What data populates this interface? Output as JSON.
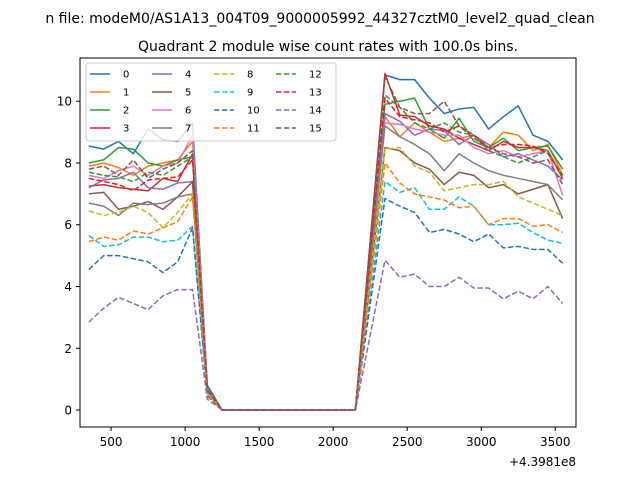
{
  "chart_data": {
    "type": "line",
    "suptitle": "n file: modeM0/AS1A13_004T09_9000005992_44327cztM0_level2_quad_clean",
    "title": "Quadrant 2 module wise count rates with 100.0s bins.",
    "xlabel": "",
    "ylabel": "",
    "offset_text": "+4.3981e8",
    "xlim": [
      290,
      3640
    ],
    "ylim": [
      -0.55,
      11.4
    ],
    "xticks": [
      500,
      1000,
      1500,
      2000,
      2500,
      3000,
      3500
    ],
    "yticks": [
      0,
      2,
      4,
      6,
      8,
      10
    ],
    "legend_position": "upper-left",
    "x": [
      350,
      450,
      550,
      650,
      750,
      850,
      950,
      1050,
      1150,
      1250,
      1350,
      1450,
      1550,
      1650,
      1750,
      1850,
      1950,
      2050,
      2150,
      2350,
      2450,
      2550,
      2650,
      2750,
      2850,
      2950,
      3050,
      3150,
      3250,
      3350,
      3450,
      3550
    ],
    "series": [
      {
        "name": "0",
        "color": "#1f77b4",
        "dash": "solid",
        "values": [
          8.55,
          8.45,
          8.7,
          8.3,
          9.1,
          8.75,
          8.7,
          9.3,
          0.8,
          0.0,
          0.0,
          0.0,
          0.0,
          0.0,
          0.0,
          0.0,
          0.0,
          0.0,
          0.0,
          10.85,
          10.7,
          10.7,
          10.1,
          9.6,
          9.75,
          9.8,
          9.1,
          9.5,
          9.85,
          8.9,
          8.7,
          8.1
        ]
      },
      {
        "name": "1",
        "color": "#ff7f0e",
        "dash": "solid",
        "values": [
          7.9,
          8.0,
          7.85,
          7.6,
          7.9,
          8.0,
          8.1,
          8.7,
          0.7,
          0.0,
          0.0,
          0.0,
          0.0,
          0.0,
          0.0,
          0.0,
          0.0,
          0.0,
          0.0,
          9.5,
          8.85,
          9.3,
          9.0,
          8.7,
          8.8,
          8.9,
          8.5,
          9.0,
          8.9,
          8.4,
          8.6,
          7.6
        ]
      },
      {
        "name": "2",
        "color": "#2ca02c",
        "dash": "solid",
        "values": [
          8.0,
          8.1,
          8.5,
          8.45,
          8.0,
          7.9,
          8.1,
          8.2,
          0.75,
          0.0,
          0.0,
          0.0,
          0.0,
          0.0,
          0.0,
          0.0,
          0.0,
          0.0,
          0.0,
          9.9,
          10.0,
          10.1,
          9.1,
          8.8,
          9.45,
          8.7,
          8.5,
          8.8,
          8.4,
          8.5,
          8.55,
          7.8
        ]
      },
      {
        "name": "3",
        "color": "#d62728",
        "dash": "solid",
        "values": [
          7.25,
          7.3,
          7.2,
          7.15,
          7.1,
          7.5,
          7.4,
          8.3,
          0.7,
          0.0,
          0.0,
          0.0,
          0.0,
          0.0,
          0.0,
          0.0,
          0.0,
          0.0,
          0.0,
          10.9,
          9.55,
          9.5,
          9.2,
          9.1,
          8.8,
          8.6,
          8.4,
          8.7,
          8.5,
          8.5,
          8.4,
          7.5
        ]
      },
      {
        "name": "4",
        "color": "#9467bd",
        "dash": "solid",
        "values": [
          7.2,
          7.45,
          7.5,
          7.7,
          7.2,
          7.15,
          7.35,
          7.4,
          0.65,
          0.0,
          0.0,
          0.0,
          0.0,
          0.0,
          0.0,
          0.0,
          0.0,
          0.0,
          0.0,
          9.6,
          9.35,
          8.9,
          9.1,
          9.05,
          8.6,
          8.9,
          8.6,
          8.2,
          8.3,
          8.1,
          7.9,
          7.45
        ]
      },
      {
        "name": "5",
        "color": "#8c564b",
        "dash": "solid",
        "values": [
          7.0,
          7.05,
          6.5,
          6.6,
          6.75,
          6.5,
          6.9,
          7.4,
          0.6,
          0.0,
          0.0,
          0.0,
          0.0,
          0.0,
          0.0,
          0.0,
          0.0,
          0.0,
          0.0,
          8.5,
          8.4,
          8.0,
          7.8,
          7.3,
          7.7,
          7.6,
          7.2,
          7.3,
          7.0,
          7.15,
          7.3,
          6.2
        ]
      },
      {
        "name": "6",
        "color": "#e377c2",
        "dash": "solid",
        "values": [
          7.6,
          7.5,
          7.75,
          7.9,
          7.6,
          7.9,
          8.0,
          8.9,
          0.7,
          0.0,
          0.0,
          0.0,
          0.0,
          0.0,
          0.0,
          0.0,
          0.0,
          0.0,
          0.0,
          9.3,
          9.25,
          9.1,
          9.0,
          8.9,
          8.9,
          8.5,
          8.3,
          8.4,
          8.2,
          8.3,
          8.4,
          6.95
        ]
      },
      {
        "name": "7",
        "color": "#7f7f7f",
        "dash": "solid",
        "values": [
          6.7,
          6.6,
          6.3,
          6.7,
          6.65,
          6.7,
          6.9,
          7.0,
          0.6,
          0.0,
          0.0,
          0.0,
          0.0,
          0.0,
          0.0,
          0.0,
          0.0,
          0.0,
          0.0,
          9.2,
          8.85,
          8.6,
          8.3,
          7.75,
          8.3,
          8.0,
          7.75,
          7.6,
          7.5,
          7.4,
          7.3,
          6.8
        ]
      },
      {
        "name": "8",
        "color": "#bcbd22",
        "dash": "dashed",
        "values": [
          6.45,
          6.3,
          6.4,
          6.6,
          6.4,
          5.9,
          6.4,
          7.0,
          0.55,
          0.0,
          0.0,
          0.0,
          0.0,
          0.0,
          0.0,
          0.0,
          0.0,
          0.0,
          0.0,
          8.45,
          8.5,
          7.9,
          7.7,
          7.1,
          7.2,
          7.3,
          7.3,
          7.4,
          6.9,
          6.7,
          6.5,
          6.3
        ]
      },
      {
        "name": "9",
        "color": "#17becf",
        "dash": "dashed",
        "values": [
          5.65,
          5.3,
          5.35,
          5.6,
          5.6,
          5.45,
          5.5,
          5.95,
          0.5,
          0.0,
          0.0,
          0.0,
          0.0,
          0.0,
          0.0,
          0.0,
          0.0,
          0.0,
          0.0,
          7.4,
          7.05,
          7.2,
          6.5,
          6.5,
          6.9,
          6.6,
          6.0,
          6.0,
          6.05,
          5.75,
          5.5,
          5.4
        ]
      },
      {
        "name": "10",
        "color": "#1f77b4",
        "dash": "dashed",
        "values": [
          4.55,
          5.0,
          5.0,
          4.9,
          4.8,
          4.45,
          4.8,
          5.9,
          0.45,
          0.0,
          0.0,
          0.0,
          0.0,
          0.0,
          0.0,
          0.0,
          0.0,
          0.0,
          0.0,
          6.85,
          6.6,
          6.4,
          5.75,
          5.85,
          5.7,
          5.45,
          5.7,
          5.25,
          5.3,
          5.2,
          5.2,
          4.75
        ]
      },
      {
        "name": "11",
        "color": "#ff7f0e",
        "dash": "dashed",
        "values": [
          5.45,
          5.6,
          5.5,
          5.8,
          5.7,
          5.9,
          6.1,
          6.9,
          0.5,
          0.0,
          0.0,
          0.0,
          0.0,
          0.0,
          0.0,
          0.0,
          0.0,
          0.0,
          0.0,
          8.0,
          7.35,
          7.0,
          6.9,
          6.8,
          6.55,
          6.6,
          6.0,
          6.2,
          6.2,
          5.95,
          6.0,
          5.75
        ]
      },
      {
        "name": "12",
        "color": "#2ca02c",
        "dash": "dashed",
        "values": [
          7.7,
          7.6,
          7.55,
          7.4,
          7.7,
          7.6,
          7.9,
          8.2,
          0.7,
          0.0,
          0.0,
          0.0,
          0.0,
          0.0,
          0.0,
          0.0,
          0.0,
          0.0,
          0.0,
          10.2,
          9.8,
          9.3,
          9.1,
          9.3,
          9.0,
          8.9,
          8.4,
          8.2,
          8.0,
          8.2,
          8.4,
          7.5
        ]
      },
      {
        "name": "13",
        "color": "#d62728",
        "dash": "dashed",
        "values": [
          7.5,
          7.4,
          7.3,
          7.1,
          7.45,
          7.5,
          7.55,
          8.1,
          0.65,
          0.0,
          0.0,
          0.0,
          0.0,
          0.0,
          0.0,
          0.0,
          0.0,
          0.0,
          0.0,
          10.1,
          9.5,
          9.4,
          9.3,
          9.0,
          9.2,
          8.9,
          8.5,
          8.6,
          8.6,
          8.55,
          8.3,
          7.6
        ]
      },
      {
        "name": "14",
        "color": "#9467bd",
        "dash": "dashed",
        "values": [
          2.85,
          3.3,
          3.65,
          3.45,
          3.25,
          3.7,
          3.9,
          3.9,
          0.35,
          0.0,
          0.0,
          0.0,
          0.0,
          0.0,
          0.0,
          0.0,
          0.0,
          0.0,
          0.0,
          4.85,
          4.3,
          4.4,
          4.0,
          4.0,
          4.3,
          3.95,
          3.95,
          3.6,
          3.85,
          3.6,
          4.0,
          3.45
        ]
      },
      {
        "name": "15",
        "color": "#8c564b",
        "dash": "dashed",
        "values": [
          7.8,
          7.9,
          7.6,
          8.1,
          7.5,
          7.8,
          8.0,
          8.4,
          0.7,
          0.0,
          0.0,
          0.0,
          0.0,
          0.0,
          0.0,
          0.0,
          0.0,
          0.0,
          0.0,
          10.8,
          9.8,
          9.6,
          9.6,
          10.0,
          9.2,
          8.8,
          8.5,
          8.3,
          8.2,
          8.0,
          8.1,
          7.3
        ]
      }
    ]
  }
}
